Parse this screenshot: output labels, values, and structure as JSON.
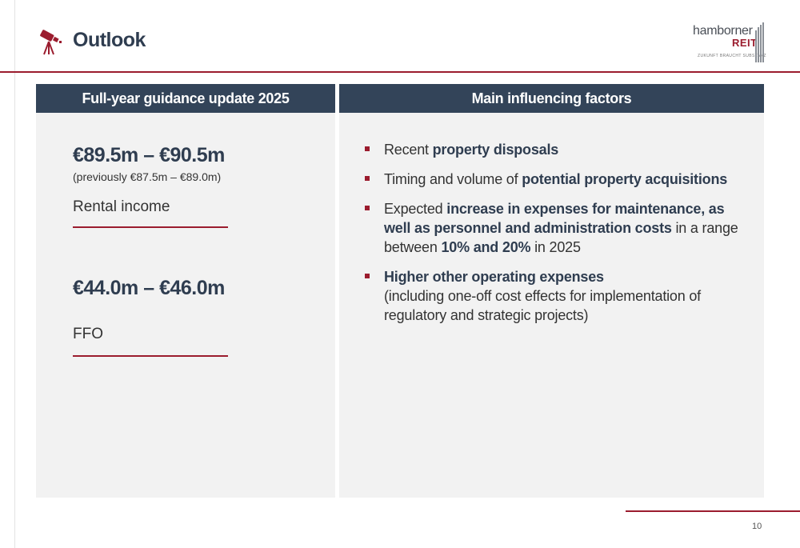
{
  "header": {
    "title": "Outlook"
  },
  "logo": {
    "name": "hamborner",
    "reit": "REIT",
    "tagline": "ZUKUNFT BRAUCHT SUBSTANZ"
  },
  "guidance": {
    "heading": "Full-year guidance update 2025",
    "items": [
      {
        "value": "€89.5m – €90.5m",
        "previous": "(previously €87.5m – €89.0m)",
        "label": "Rental income"
      },
      {
        "value": "€44.0m – €46.0m",
        "previous": "",
        "label": "FFO"
      }
    ]
  },
  "factors": {
    "heading": "Main influencing factors",
    "items": [
      [
        {
          "t": "Recent ",
          "b": false
        },
        {
          "t": "property disposals",
          "b": true
        }
      ],
      [
        {
          "t": "Timing and volume of ",
          "b": false
        },
        {
          "t": "potential property acquisitions",
          "b": true
        }
      ],
      [
        {
          "t": "Expected ",
          "b": false
        },
        {
          "t": "increase in expenses for maintenance, as well as personnel and administration costs",
          "b": true
        },
        {
          "t": " in a range between ",
          "b": false
        },
        {
          "t": "10% and 20%",
          "b": true
        },
        {
          "t": " in 2025",
          "b": false
        }
      ],
      [
        {
          "t": "Higher other operating expenses",
          "b": true
        },
        {
          "t": "(including one-off cost effects for implementation of regulatory and strategic projects)",
          "b": false,
          "br": true
        }
      ]
    ]
  },
  "footer": {
    "page_number": "10"
  }
}
